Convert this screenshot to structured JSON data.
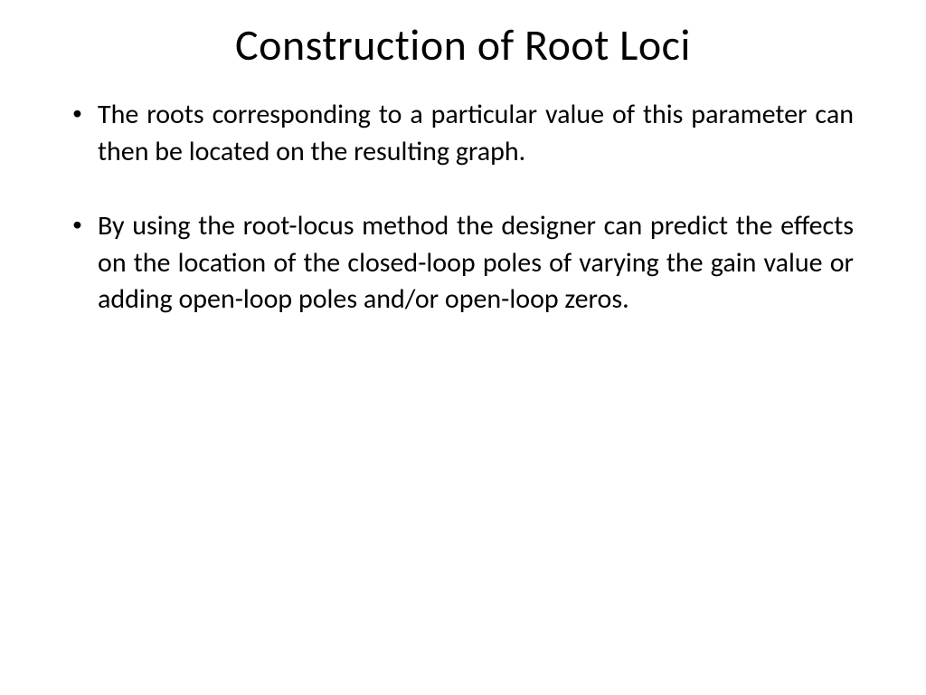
{
  "slide": {
    "title": "Construction of Root Loci",
    "title_fontsize": 48,
    "title_color": "#000000",
    "background_color": "#ffffff",
    "bullets": [
      {
        "text": "The roots corresponding to a particular value of this parameter can then be located on the resulting graph."
      },
      {
        "text": "By using the root-locus method the designer can predict the effects on the location of the closed-loop poles of varying the gain value or adding open-loop poles and/or open-loop zeros."
      }
    ],
    "body_fontsize": 30,
    "body_color": "#000000",
    "bullet_marker": "•",
    "text_align": "justify"
  }
}
